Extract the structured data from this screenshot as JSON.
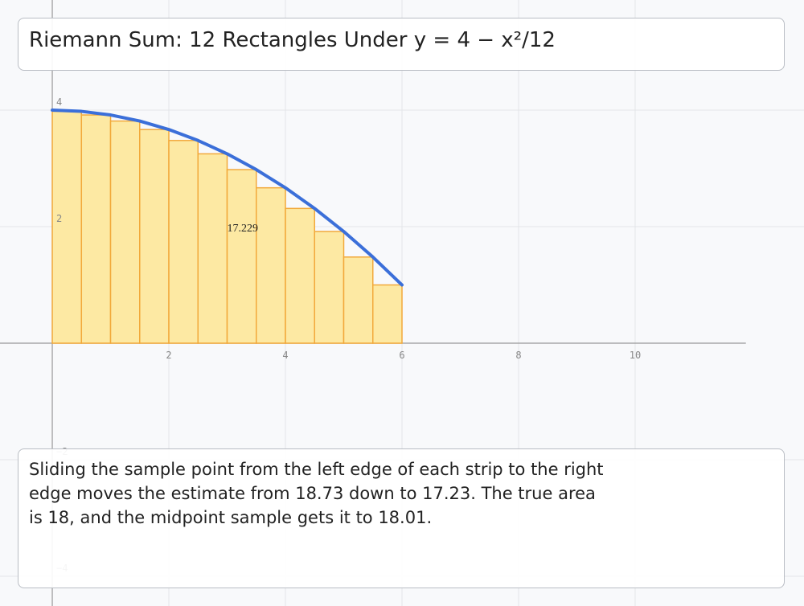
{
  "title": "Riemann Sum: 12 Rectangles Under y = 4 − x²/12",
  "chart_data": {
    "type": "riemann",
    "xlim": [
      -0.897,
      12.897
    ],
    "ylim": [
      -4.51,
      5.89
    ],
    "xticks": [
      2,
      4,
      6,
      8,
      10
    ],
    "yticks": [
      {
        "value": -4,
        "label": "−4"
      },
      {
        "value": -2,
        "label": "−2"
      },
      2,
      4
    ],
    "grid": true,
    "curve": {
      "color": "#3b6fd9",
      "x": [
        0,
        0.5,
        1,
        1.5,
        2,
        2.5,
        3,
        3.5,
        4,
        4.5,
        5,
        5.5,
        6
      ],
      "y": [
        4,
        3.979,
        3.917,
        3.813,
        3.667,
        3.479,
        3.25,
        2.979,
        2.667,
        2.313,
        1.917,
        1.479,
        1
      ]
    },
    "rectangles": {
      "fill": "#fde9a3",
      "stroke": "#f2a93b",
      "edges": [
        0,
        0.5,
        1,
        1.5,
        2,
        2.5,
        3,
        3.5,
        4,
        4.5,
        5,
        5.5,
        6
      ],
      "heights": [
        3.979,
        3.917,
        3.813,
        3.667,
        3.479,
        3.25,
        2.979,
        2.667,
        2.313,
        1.917,
        1.479,
        1
      ]
    },
    "annotation": "17.229"
  },
  "caption": "Sliding the sample point from the left edge of each strip to the right edge moves the estimate from 18.73 down to 17.23. The true area is 18, and the midpoint sample gets it to 18.01."
}
